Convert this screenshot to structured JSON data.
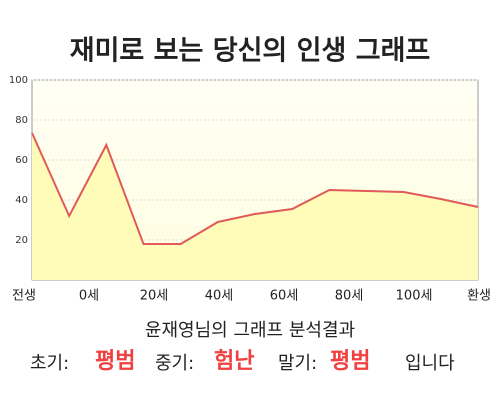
{
  "chart_data": {
    "type": "area",
    "title": "재미로 보는 당신의 인생 그래프",
    "x_labels": [
      "전생",
      "0세",
      "20세",
      "40세",
      "60세",
      "80세",
      "100세",
      "환생"
    ],
    "values": [
      73.5,
      32,
      67.5,
      18,
      18,
      29,
      33,
      35.5,
      45,
      44.5,
      44,
      40.5,
      36.5
    ],
    "ylim": [
      0,
      100
    ],
    "yticks": [
      20,
      40,
      60,
      80,
      100
    ],
    "grid": true,
    "color": "#e05a5a",
    "fill": "#fffbb8"
  },
  "result": {
    "heading": "윤재영님의 그래프 분석결과",
    "items": [
      {
        "label": "초기:",
        "value": "평범"
      },
      {
        "label": "중기:",
        "value": "험난"
      },
      {
        "label": "말기:",
        "value": "평범"
      }
    ],
    "ending": "입니다"
  }
}
